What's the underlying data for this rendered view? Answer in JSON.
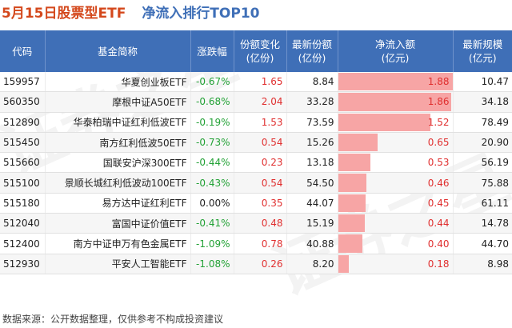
{
  "title": {
    "date": "5月15日股票型ETF",
    "subtitle": "净流入排行TOP10"
  },
  "headers": {
    "code": "代码",
    "name": "基金简称",
    "change": "涨跌幅",
    "share_change_1": "份额变化",
    "share_change_2": "(亿份)",
    "latest_share_1": "最新份额",
    "latest_share_2": "(亿份)",
    "inflow_1": "净流入额",
    "inflow_2": "(亿元)",
    "scale_1": "最新规模",
    "scale_2": "(亿元)"
  },
  "rows": [
    {
      "code": "159957",
      "name": "华夏创业板ETF",
      "change": "-0.67%",
      "share_change": "1.65",
      "latest_share": "8.84",
      "inflow": "1.88",
      "inflow_value": 1.88,
      "scale": "10.47"
    },
    {
      "code": "560350",
      "name": "摩根中证A50ETF",
      "change": "-0.68%",
      "share_change": "2.04",
      "latest_share": "33.28",
      "inflow": "1.86",
      "inflow_value": 1.86,
      "scale": "34.18"
    },
    {
      "code": "512890",
      "name": "华泰柏瑞中证红利低波ETF",
      "change": "-0.19%",
      "share_change": "1.53",
      "latest_share": "73.59",
      "inflow": "1.52",
      "inflow_value": 1.52,
      "scale": "78.49"
    },
    {
      "code": "515450",
      "name": "南方红利低波50ETF",
      "change": "-0.73%",
      "share_change": "0.54",
      "latest_share": "15.26",
      "inflow": "0.65",
      "inflow_value": 0.65,
      "scale": "20.90"
    },
    {
      "code": "515660",
      "name": "国联安沪深300ETF",
      "change": "-0.44%",
      "share_change": "0.23",
      "latest_share": "13.18",
      "inflow": "0.53",
      "inflow_value": 0.53,
      "scale": "56.19"
    },
    {
      "code": "515100",
      "name": "景顺长城红利低波动100ETF",
      "change": "-0.43%",
      "share_change": "0.54",
      "latest_share": "54.50",
      "inflow": "0.46",
      "inflow_value": 0.46,
      "scale": "75.88"
    },
    {
      "code": "515180",
      "name": "易方达中证红利ETF",
      "change": "0.00%",
      "share_change": "0.35",
      "latest_share": "44.07",
      "inflow": "0.45",
      "inflow_value": 0.45,
      "scale": "61.11"
    },
    {
      "code": "512040",
      "name": "富国中证价值ETF",
      "change": "-0.41%",
      "share_change": "0.48",
      "latest_share": "15.19",
      "inflow": "0.44",
      "inflow_value": 0.44,
      "scale": "14.78"
    },
    {
      "code": "512400",
      "name": "南方中证申万有色金属ETF",
      "change": "-1.09%",
      "share_change": "0.78",
      "latest_share": "40.88",
      "inflow": "0.40",
      "inflow_value": 0.4,
      "scale": "44.70"
    },
    {
      "code": "512930",
      "name": "平安人工智能ETF",
      "change": "-1.08%",
      "share_change": "0.26",
      "latest_share": "8.20",
      "inflow": "0.18",
      "inflow_value": 0.18,
      "scale": "8.98"
    }
  ],
  "footer": "数据来源：公开数据整理，仅供参考不构成投资建议",
  "colors": {
    "header_bg": "#3f6fb7",
    "title_date": "#d4481c",
    "title_sub": "#3f6fb7",
    "positive": "#e03030",
    "negative": "#23a236",
    "bar": "#f7a5a5"
  }
}
